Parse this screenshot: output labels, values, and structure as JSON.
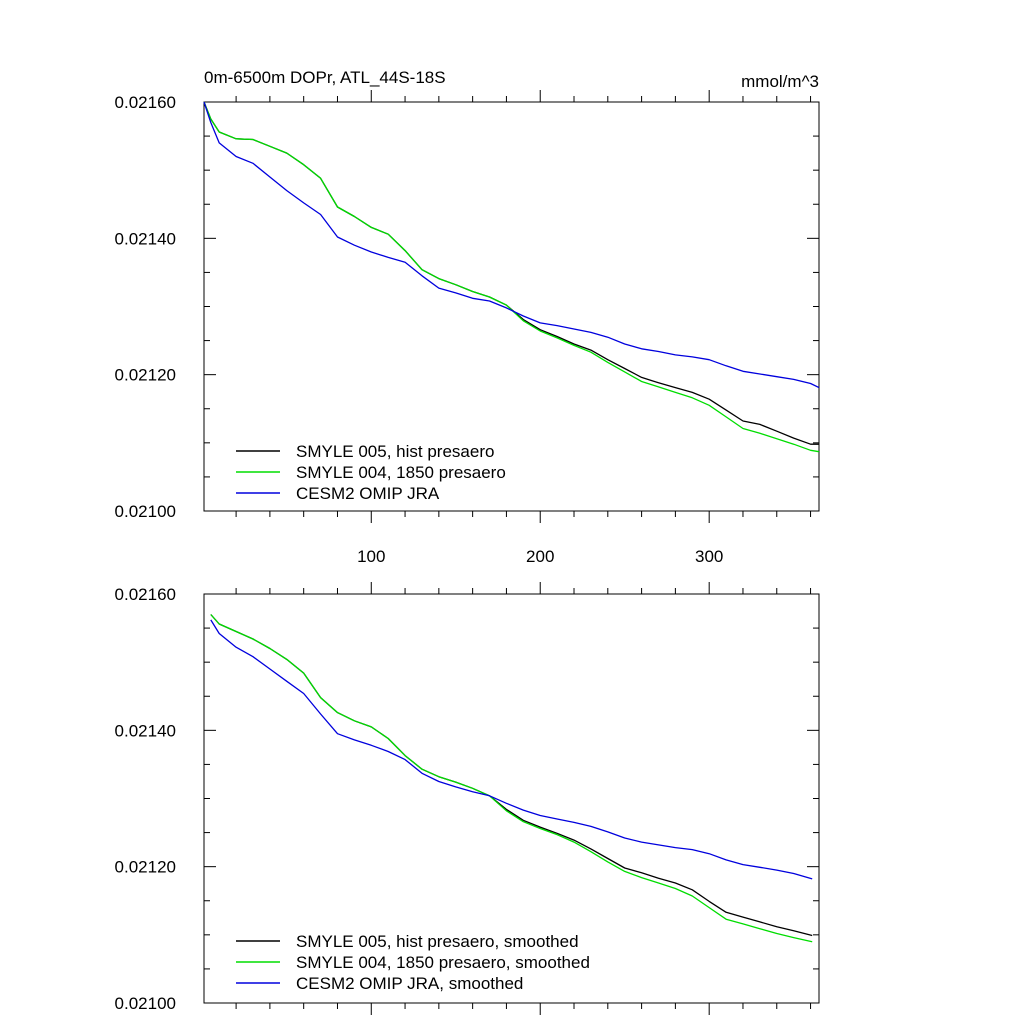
{
  "chart_data": [
    {
      "type": "line",
      "title": "0m-6500m DOPr, ATL_44S-18S",
      "units": "mmol/m^3",
      "xlim": [
        1,
        365
      ],
      "ylim": [
        0.021,
        0.0216
      ],
      "x_ticks": [
        100,
        200,
        300
      ],
      "x_tick_labels": [
        "100",
        "200",
        "300"
      ],
      "y_ticks": [
        0.021,
        0.0212,
        0.0214,
        0.0216
      ],
      "y_tick_labels": [
        "0.02100",
        "0.02120",
        "0.02140",
        "0.02160"
      ],
      "legend_position": "bottom-left",
      "series": [
        {
          "name": "SMYLE 005, hist presaero",
          "color": "#000000",
          "x": [
            1,
            5,
            10,
            20,
            30,
            40,
            50,
            60,
            70,
            80,
            90,
            100,
            110,
            120,
            130,
            140,
            150,
            160,
            170,
            180,
            190,
            200,
            210,
            220,
            230,
            240,
            250,
            260,
            270,
            280,
            290,
            300,
            310,
            320,
            330,
            340,
            350,
            360,
            365
          ],
          "y": [
            0.0216,
            0.021575,
            0.021556,
            0.021546,
            0.021545,
            0.021535,
            0.021525,
            0.021508,
            0.021488,
            0.021446,
            0.021432,
            0.021416,
            0.021406,
            0.021382,
            0.021354,
            0.021341,
            0.021332,
            0.021322,
            0.021314,
            0.021302,
            0.021281,
            0.021266,
            0.021256,
            0.021245,
            0.021236,
            0.021222,
            0.021209,
            0.021196,
            0.021188,
            0.021181,
            0.021174,
            0.021164,
            0.021148,
            0.021132,
            0.021127,
            0.021117,
            0.021107,
            0.021098,
            0.021098
          ]
        },
        {
          "name": "SMYLE 004, 1850 presaero",
          "color": "#00dd00",
          "x": [
            1,
            5,
            10,
            20,
            30,
            40,
            50,
            60,
            70,
            80,
            90,
            100,
            110,
            120,
            130,
            140,
            150,
            160,
            170,
            180,
            190,
            200,
            210,
            220,
            230,
            240,
            250,
            260,
            270,
            280,
            290,
            300,
            310,
            320,
            330,
            340,
            350,
            360,
            365
          ],
          "y": [
            0.0216,
            0.021575,
            0.021556,
            0.021546,
            0.021545,
            0.021535,
            0.021525,
            0.021508,
            0.021488,
            0.021446,
            0.021432,
            0.021416,
            0.021406,
            0.021382,
            0.021354,
            0.021341,
            0.021332,
            0.021322,
            0.021314,
            0.021302,
            0.021279,
            0.021264,
            0.021254,
            0.021243,
            0.021233,
            0.021218,
            0.021204,
            0.02119,
            0.021182,
            0.021174,
            0.021166,
            0.021155,
            0.021138,
            0.021121,
            0.021114,
            0.021106,
            0.021098,
            0.021089,
            0.021087
          ]
        },
        {
          "name": "CESM2 OMIP JRA",
          "color": "#0000dd",
          "x": [
            1,
            5,
            10,
            20,
            30,
            40,
            50,
            60,
            70,
            80,
            90,
            100,
            110,
            120,
            130,
            140,
            150,
            160,
            170,
            180,
            190,
            200,
            210,
            220,
            230,
            240,
            250,
            260,
            270,
            280,
            290,
            300,
            310,
            320,
            330,
            340,
            350,
            360,
            365
          ],
          "y": [
            0.0216,
            0.02157,
            0.02154,
            0.02152,
            0.02151,
            0.02149,
            0.02147,
            0.021452,
            0.021435,
            0.021402,
            0.02139,
            0.02138,
            0.021372,
            0.021365,
            0.021345,
            0.021327,
            0.02132,
            0.021312,
            0.021308,
            0.021298,
            0.021286,
            0.021276,
            0.021272,
            0.021267,
            0.021262,
            0.021255,
            0.021245,
            0.021238,
            0.021234,
            0.021229,
            0.021226,
            0.021222,
            0.021213,
            0.021205,
            0.021201,
            0.021197,
            0.021193,
            0.021187,
            0.021181
          ]
        }
      ]
    },
    {
      "type": "line",
      "title": "",
      "units": "",
      "xlim": [
        1,
        365
      ],
      "ylim": [
        0.021,
        0.0216
      ],
      "x_ticks": [
        100,
        200,
        300
      ],
      "x_tick_labels": [],
      "y_ticks": [
        0.021,
        0.0212,
        0.0214,
        0.0216
      ],
      "y_tick_labels": [
        "0.02100",
        "0.02120",
        "0.02140",
        "0.02160"
      ],
      "legend_position": "bottom-left",
      "series": [
        {
          "name": "SMYLE 005, hist presaero, smoothed",
          "color": "#000000",
          "x": [
            5,
            10,
            20,
            30,
            40,
            50,
            60,
            70,
            80,
            90,
            100,
            110,
            120,
            130,
            140,
            150,
            160,
            170,
            180,
            190,
            200,
            210,
            220,
            230,
            240,
            250,
            260,
            270,
            280,
            290,
            300,
            310,
            320,
            330,
            340,
            350,
            361
          ],
          "y": [
            0.02157,
            0.021556,
            0.021545,
            0.021534,
            0.02152,
            0.021504,
            0.021484,
            0.021448,
            0.021426,
            0.021414,
            0.021405,
            0.021388,
            0.021363,
            0.021343,
            0.021332,
            0.021324,
            0.021315,
            0.021304,
            0.021284,
            0.021268,
            0.021258,
            0.021249,
            0.021239,
            0.021226,
            0.021212,
            0.021198,
            0.021191,
            0.021183,
            0.021176,
            0.021166,
            0.021149,
            0.021133,
            0.021126,
            0.021119,
            0.021112,
            0.021106,
            0.021099
          ]
        },
        {
          "name": "SMYLE 004, 1850 presaero, smoothed",
          "color": "#00dd00",
          "x": [
            5,
            10,
            20,
            30,
            40,
            50,
            60,
            70,
            80,
            90,
            100,
            110,
            120,
            130,
            140,
            150,
            160,
            170,
            180,
            190,
            200,
            210,
            220,
            230,
            240,
            250,
            260,
            270,
            280,
            290,
            300,
            310,
            320,
            330,
            340,
            350,
            361
          ],
          "y": [
            0.02157,
            0.021556,
            0.021545,
            0.021534,
            0.02152,
            0.021504,
            0.021484,
            0.021448,
            0.021426,
            0.021414,
            0.021405,
            0.021388,
            0.021363,
            0.021343,
            0.021332,
            0.021324,
            0.021315,
            0.021304,
            0.021282,
            0.021266,
            0.021256,
            0.021247,
            0.021236,
            0.021222,
            0.021207,
            0.021193,
            0.021184,
            0.021176,
            0.021168,
            0.021157,
            0.02114,
            0.021123,
            0.021116,
            0.021109,
            0.021102,
            0.021096,
            0.02109
          ]
        },
        {
          "name": "CESM2 OMIP JRA, smoothed",
          "color": "#0000dd",
          "x": [
            5,
            10,
            20,
            30,
            40,
            50,
            60,
            70,
            80,
            90,
            100,
            110,
            120,
            130,
            140,
            150,
            160,
            170,
            180,
            190,
            200,
            210,
            220,
            230,
            240,
            250,
            260,
            270,
            280,
            290,
            300,
            310,
            320,
            330,
            340,
            350,
            361
          ],
          "y": [
            0.021562,
            0.021542,
            0.021522,
            0.021508,
            0.02149,
            0.021472,
            0.021454,
            0.021424,
            0.021395,
            0.021386,
            0.021378,
            0.021369,
            0.021357,
            0.021337,
            0.021325,
            0.021317,
            0.02131,
            0.021304,
            0.021293,
            0.021283,
            0.021275,
            0.02127,
            0.021265,
            0.021259,
            0.021251,
            0.021242,
            0.021236,
            0.021232,
            0.021228,
            0.021225,
            0.021219,
            0.02121,
            0.021203,
            0.021199,
            0.021195,
            0.02119,
            0.021182
          ]
        }
      ]
    }
  ]
}
